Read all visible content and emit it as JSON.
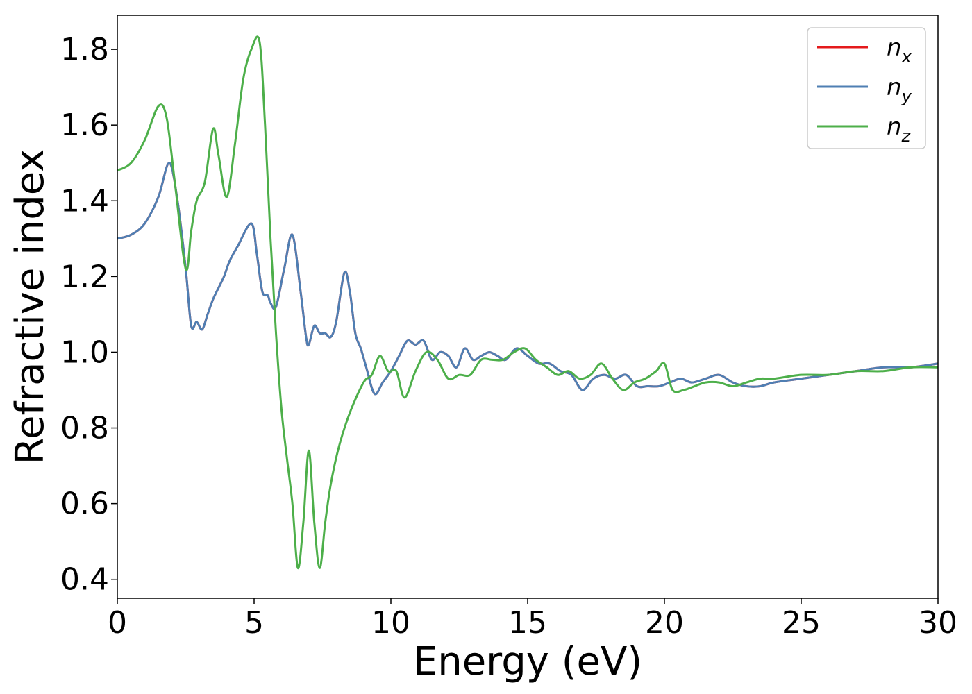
{
  "chart_data": {
    "type": "line",
    "xlabel": "Energy (eV)",
    "ylabel": "Refractive index",
    "xlim": [
      0,
      30
    ],
    "ylim": [
      0.35,
      1.89
    ],
    "x_ticks": [
      0,
      5,
      10,
      15,
      20,
      25,
      30
    ],
    "x_tick_labels": [
      "0",
      "5",
      "10",
      "15",
      "20",
      "25",
      "30"
    ],
    "y_ticks": [
      0.4,
      0.6,
      0.8,
      1.0,
      1.2,
      1.4,
      1.6,
      1.8
    ],
    "y_tick_labels": [
      "0.4",
      "0.6",
      "0.8",
      "1.0",
      "1.2",
      "1.4",
      "1.6",
      "1.8"
    ],
    "grid": false,
    "legend_position": "top-right",
    "series": [
      {
        "name": "n_x",
        "label_base": "n",
        "label_sub": "x",
        "color": "#e41a1c",
        "x": [
          0,
          0.5,
          1,
          1.5,
          1.9,
          2.2,
          2.5,
          2.7,
          2.9,
          3.1,
          3.3,
          3.5,
          3.7,
          3.9,
          4.1,
          4.4,
          4.9,
          5.1,
          5.3,
          5.5,
          5.6,
          5.8,
          6.1,
          6.4,
          6.7,
          6.9,
          7.0,
          7.2,
          7.4,
          7.6,
          7.8,
          8.0,
          8.3,
          8.5,
          8.7,
          8.9,
          9.1,
          9.4,
          9.7,
          10.0,
          10.3,
          10.6,
          10.9,
          11.2,
          11.5,
          11.8,
          12.1,
          12.4,
          12.7,
          13.0,
          13.3,
          13.6,
          13.9,
          14.2,
          14.6,
          15.0,
          15.4,
          15.8,
          16.2,
          16.6,
          17.0,
          17.4,
          17.8,
          18.2,
          18.6,
          19.0,
          19.4,
          19.8,
          20.2,
          20.6,
          21.0,
          21.5,
          22.0,
          22.5,
          23.0,
          23.5,
          24.0,
          25.0,
          26.0,
          27.0,
          28.0,
          29.0,
          30.0
        ],
        "y": [
          1.3,
          1.31,
          1.34,
          1.41,
          1.5,
          1.4,
          1.22,
          1.07,
          1.08,
          1.06,
          1.1,
          1.14,
          1.17,
          1.2,
          1.24,
          1.28,
          1.34,
          1.26,
          1.16,
          1.15,
          1.13,
          1.12,
          1.22,
          1.31,
          1.16,
          1.04,
          1.02,
          1.07,
          1.05,
          1.05,
          1.04,
          1.08,
          1.21,
          1.16,
          1.05,
          1.01,
          0.96,
          0.89,
          0.92,
          0.95,
          0.99,
          1.03,
          1.02,
          1.03,
          0.98,
          1.0,
          0.99,
          0.96,
          1.01,
          0.98,
          0.99,
          1.0,
          0.99,
          0.98,
          1.01,
          0.99,
          0.97,
          0.97,
          0.95,
          0.94,
          0.9,
          0.93,
          0.94,
          0.93,
          0.94,
          0.91,
          0.91,
          0.91,
          0.92,
          0.93,
          0.92,
          0.93,
          0.94,
          0.92,
          0.91,
          0.91,
          0.92,
          0.93,
          0.94,
          0.95,
          0.96,
          0.96,
          0.97
        ]
      },
      {
        "name": "n_y",
        "label_base": "n",
        "label_sub": "y",
        "color": "#4f7fb3",
        "x": [
          0,
          0.5,
          1,
          1.5,
          1.9,
          2.2,
          2.5,
          2.7,
          2.9,
          3.1,
          3.3,
          3.5,
          3.7,
          3.9,
          4.1,
          4.4,
          4.9,
          5.1,
          5.3,
          5.5,
          5.6,
          5.8,
          6.1,
          6.4,
          6.7,
          6.9,
          7.0,
          7.2,
          7.4,
          7.6,
          7.8,
          8.0,
          8.3,
          8.5,
          8.7,
          8.9,
          9.1,
          9.4,
          9.7,
          10.0,
          10.3,
          10.6,
          10.9,
          11.2,
          11.5,
          11.8,
          12.1,
          12.4,
          12.7,
          13.0,
          13.3,
          13.6,
          13.9,
          14.2,
          14.6,
          15.0,
          15.4,
          15.8,
          16.2,
          16.6,
          17.0,
          17.4,
          17.8,
          18.2,
          18.6,
          19.0,
          19.4,
          19.8,
          20.2,
          20.6,
          21.0,
          21.5,
          22.0,
          22.5,
          23.0,
          23.5,
          24.0,
          25.0,
          26.0,
          27.0,
          28.0,
          29.0,
          30.0
        ],
        "y": [
          1.3,
          1.31,
          1.34,
          1.41,
          1.5,
          1.4,
          1.22,
          1.07,
          1.08,
          1.06,
          1.1,
          1.14,
          1.17,
          1.2,
          1.24,
          1.28,
          1.34,
          1.26,
          1.16,
          1.15,
          1.13,
          1.12,
          1.22,
          1.31,
          1.16,
          1.04,
          1.02,
          1.07,
          1.05,
          1.05,
          1.04,
          1.08,
          1.21,
          1.16,
          1.05,
          1.01,
          0.96,
          0.89,
          0.92,
          0.95,
          0.99,
          1.03,
          1.02,
          1.03,
          0.98,
          1.0,
          0.99,
          0.96,
          1.01,
          0.98,
          0.99,
          1.0,
          0.99,
          0.98,
          1.01,
          0.99,
          0.97,
          0.97,
          0.95,
          0.94,
          0.9,
          0.93,
          0.94,
          0.93,
          0.94,
          0.91,
          0.91,
          0.91,
          0.92,
          0.93,
          0.92,
          0.93,
          0.94,
          0.92,
          0.91,
          0.91,
          0.92,
          0.93,
          0.94,
          0.95,
          0.96,
          0.96,
          0.97
        ]
      },
      {
        "name": "n_z",
        "label_base": "n",
        "label_sub": "z",
        "color": "#4daf4a",
        "x": [
          0,
          0.5,
          1,
          1.5,
          1.8,
          2.1,
          2.5,
          2.7,
          2.9,
          3.2,
          3.5,
          3.7,
          4.0,
          4.3,
          4.6,
          4.9,
          5.2,
          5.4,
          5.6,
          5.8,
          6.0,
          6.2,
          6.4,
          6.6,
          6.8,
          7.0,
          7.2,
          7.4,
          7.6,
          7.8,
          8.1,
          8.5,
          9.0,
          9.3,
          9.6,
          9.9,
          10.2,
          10.5,
          10.9,
          11.3,
          11.7,
          12.1,
          12.5,
          12.9,
          13.3,
          13.7,
          14.1,
          14.5,
          14.9,
          15.3,
          15.7,
          16.1,
          16.5,
          16.9,
          17.3,
          17.7,
          18.1,
          18.5,
          18.9,
          19.3,
          19.7,
          20.0,
          20.3,
          20.7,
          21.1,
          21.5,
          22.0,
          22.5,
          23.0,
          23.5,
          24.0,
          25.0,
          26.0,
          27.0,
          28.0,
          29.0,
          30.0
        ],
        "y": [
          1.48,
          1.5,
          1.56,
          1.65,
          1.62,
          1.45,
          1.22,
          1.32,
          1.4,
          1.45,
          1.59,
          1.52,
          1.41,
          1.55,
          1.72,
          1.8,
          1.82,
          1.6,
          1.3,
          1.05,
          0.85,
          0.72,
          0.6,
          0.43,
          0.55,
          0.74,
          0.55,
          0.43,
          0.55,
          0.65,
          0.75,
          0.84,
          0.92,
          0.94,
          0.99,
          0.95,
          0.95,
          0.88,
          0.95,
          1.0,
          0.98,
          0.93,
          0.94,
          0.94,
          0.98,
          0.98,
          0.98,
          1.0,
          1.01,
          0.98,
          0.96,
          0.94,
          0.95,
          0.93,
          0.94,
          0.97,
          0.93,
          0.9,
          0.92,
          0.93,
          0.95,
          0.97,
          0.9,
          0.9,
          0.91,
          0.92,
          0.92,
          0.91,
          0.92,
          0.93,
          0.93,
          0.94,
          0.94,
          0.95,
          0.95,
          0.96,
          0.96
        ]
      }
    ]
  }
}
